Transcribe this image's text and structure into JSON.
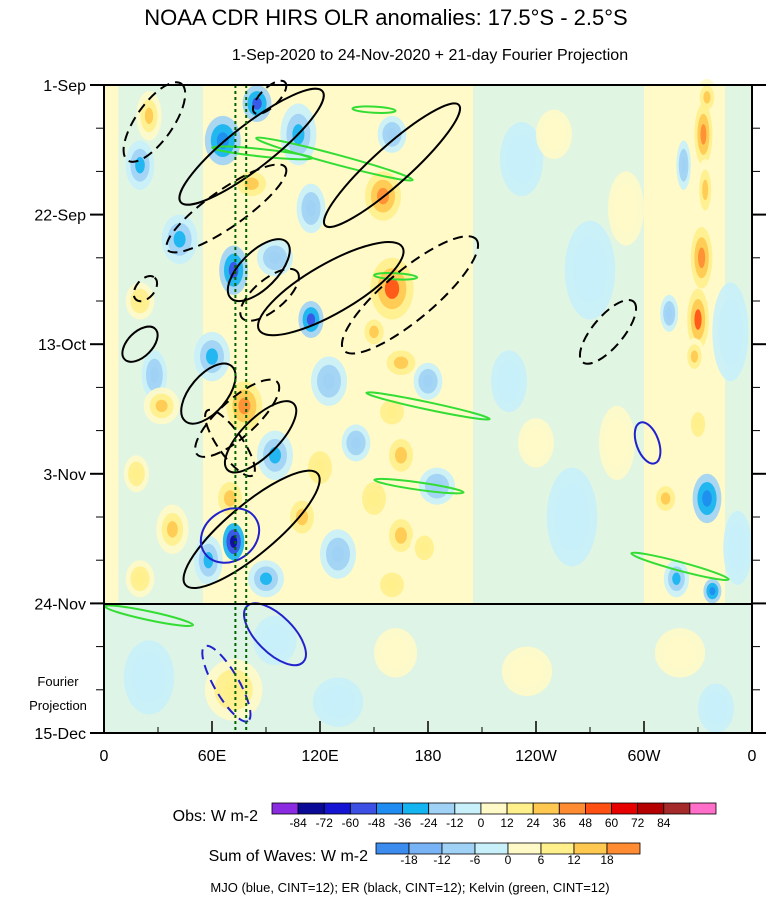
{
  "chart_data": {
    "type": "heatmap",
    "title": "NOAA CDR HIRS OLR anomalies: 17.5°S - 2.5°S",
    "subtitle": "1-Sep-2020 to 24-Nov-2020 + 21-day Fourier Projection",
    "x_range_deg": [
      0,
      360
    ],
    "x_ticks": [
      {
        "deg": 0,
        "label": "0"
      },
      {
        "deg": 60,
        "label": "60E"
      },
      {
        "deg": 120,
        "label": "120E"
      },
      {
        "deg": 180,
        "label": "180"
      },
      {
        "deg": 240,
        "label": "120W"
      },
      {
        "deg": 300,
        "label": "60W"
      },
      {
        "deg": 360,
        "label": "0"
      }
    ],
    "y_range_days": [
      0,
      105
    ],
    "y_ticks": [
      {
        "day": 0,
        "label": "1-Sep"
      },
      {
        "day": 21,
        "label": "22-Sep"
      },
      {
        "day": 42,
        "label": "13-Oct"
      },
      {
        "day": 63,
        "label": "3-Nov"
      },
      {
        "day": 84,
        "label": "24-Nov"
      },
      {
        "day": 105,
        "label": "15-Dec"
      }
    ],
    "projection_start_day": 84,
    "projection_label_line1": "Fourier",
    "projection_label_line2": "Projection",
    "reference_longitudes_deg": [
      73,
      79
    ],
    "obs_legend": {
      "label": "Obs: W m-2",
      "levels": [
        "-84",
        "-72",
        "-60",
        "-48",
        "-36",
        "-24",
        "-12",
        "0",
        "12",
        "24",
        "36",
        "48",
        "60",
        "72",
        "84"
      ],
      "colors": [
        "#8a2be2",
        "#0a0a96",
        "#1414d2",
        "#3c50e6",
        "#1e8cf0",
        "#14b4f0",
        "#a0d2f5",
        "#c8f0fa",
        "#fffac8",
        "#fff08c",
        "#ffc850",
        "#ff8c32",
        "#ff5014",
        "#e60000",
        "#b40000",
        "#a52a2a",
        "#ff6ec8"
      ]
    },
    "waves_legend": {
      "label": "Sum of Waves: W m-2",
      "levels": [
        "-18",
        "-12",
        "-6",
        "0",
        "6",
        "12",
        "18"
      ],
      "colors": [
        "#3c8cf0",
        "#78b4f5",
        "#a0d2f5",
        "#c8f0fa",
        "#fffac8",
        "#fff08c",
        "#ffc850",
        "#ff8c32"
      ]
    },
    "footnote": "MJO (blue, CINT=12); ER (black, CINT=12); Kelvin (green, CINT=12)",
    "blobs": [
      {
        "lon": 335,
        "day": 2,
        "rl": 6,
        "rd": 3,
        "v": 36
      },
      {
        "lon": 333,
        "day": 8,
        "rl": 5,
        "rd": 5,
        "v": 48
      },
      {
        "lon": 334,
        "day": 17,
        "rl": 5,
        "rd": 5,
        "v": 36
      },
      {
        "lon": 332,
        "day": 28,
        "rl": 6,
        "rd": 5,
        "v": 48
      },
      {
        "lon": 330,
        "day": 38,
        "rl": 6,
        "rd": 5,
        "v": 60
      },
      {
        "lon": 328,
        "day": 44,
        "rl": 6,
        "rd": 3,
        "v": 36
      },
      {
        "lon": 330,
        "day": 55,
        "rl": 6,
        "rd": 3,
        "v": 24
      },
      {
        "lon": 335,
        "day": 67,
        "rl": 8,
        "rd": 4,
        "v": -48
      },
      {
        "lon": 312,
        "day": 67,
        "rl": 8,
        "rd": 3,
        "v": 36
      },
      {
        "lon": 338,
        "day": 82,
        "rl": 5,
        "rd": 2,
        "v": -48
      },
      {
        "lon": 314,
        "day": 37,
        "rl": 5,
        "rd": 3,
        "v": -24
      },
      {
        "lon": 322,
        "day": 13,
        "rl": 4,
        "rd": 4,
        "v": -24
      },
      {
        "lon": 318,
        "day": 80,
        "rl": 7,
        "rd": 3,
        "v": -36
      },
      {
        "lon": 25,
        "day": 5,
        "rl": 7,
        "rd": 4,
        "v": 36
      },
      {
        "lon": 20,
        "day": 13,
        "rl": 8,
        "rd": 4,
        "v": -36
      },
      {
        "lon": 42,
        "day": 25,
        "rl": 10,
        "rd": 4,
        "v": -36
      },
      {
        "lon": 20,
        "day": 35,
        "rl": 8,
        "rd": 3,
        "v": 24
      },
      {
        "lon": 28,
        "day": 47,
        "rl": 7,
        "rd": 4,
        "v": -24
      },
      {
        "lon": 32,
        "day": 52,
        "rl": 10,
        "rd": 3,
        "v": 36
      },
      {
        "lon": 18,
        "day": 63,
        "rl": 7,
        "rd": 3,
        "v": 24
      },
      {
        "lon": 38,
        "day": 72,
        "rl": 9,
        "rd": 4,
        "v": 36
      },
      {
        "lon": 58,
        "day": 77,
        "rl": 8,
        "rd": 4,
        "v": -36
      },
      {
        "lon": 20,
        "day": 80,
        "rl": 8,
        "rd": 3,
        "v": 24
      },
      {
        "lon": 85,
        "day": 3,
        "rl": 8,
        "rd": 3,
        "v": -60
      },
      {
        "lon": 66,
        "day": 9,
        "rl": 10,
        "rd": 4,
        "v": -48
      },
      {
        "lon": 82,
        "day": 16,
        "rl": 12,
        "rd": 3,
        "v": 36
      },
      {
        "lon": 72,
        "day": 30,
        "rl": 8,
        "rd": 4,
        "v": -60
      },
      {
        "lon": 95,
        "day": 28,
        "rl": 10,
        "rd": 3,
        "v": -24
      },
      {
        "lon": 60,
        "day": 44,
        "rl": 10,
        "rd": 4,
        "v": -36
      },
      {
        "lon": 78,
        "day": 52,
        "rl": 10,
        "rd": 4,
        "v": 48
      },
      {
        "lon": 95,
        "day": 60,
        "rl": 10,
        "rd": 4,
        "v": -36
      },
      {
        "lon": 70,
        "day": 67,
        "rl": 10,
        "rd": 4,
        "v": 36
      },
      {
        "lon": 72,
        "day": 74,
        "rl": 6,
        "rd": 3,
        "v": -84
      },
      {
        "lon": 90,
        "day": 80,
        "rl": 10,
        "rd": 3,
        "v": -36
      },
      {
        "lon": 108,
        "day": 8,
        "rl": 10,
        "rd": 5,
        "v": -36
      },
      {
        "lon": 115,
        "day": 20,
        "rl": 8,
        "rd": 4,
        "v": -24
      },
      {
        "lon": 115,
        "day": 38,
        "rl": 7,
        "rd": 3,
        "v": -60
      },
      {
        "lon": 125,
        "day": 48,
        "rl": 10,
        "rd": 4,
        "v": -24
      },
      {
        "lon": 120,
        "day": 62,
        "rl": 10,
        "rd": 4,
        "v": 24
      },
      {
        "lon": 110,
        "day": 70,
        "rl": 10,
        "rd": 4,
        "v": 36
      },
      {
        "lon": 130,
        "day": 76,
        "rl": 10,
        "rd": 4,
        "v": -24
      },
      {
        "lon": 155,
        "day": 18,
        "rl": 10,
        "rd": 4,
        "v": 48
      },
      {
        "lon": 160,
        "day": 8,
        "rl": 8,
        "rd": 3,
        "v": -24
      },
      {
        "lon": 160,
        "day": 33,
        "rl": 12,
        "rd": 5,
        "v": 60
      },
      {
        "lon": 150,
        "day": 40,
        "rl": 8,
        "rd": 3,
        "v": 36
      },
      {
        "lon": 165,
        "day": 45,
        "rl": 12,
        "rd": 3,
        "v": 36
      },
      {
        "lon": 160,
        "day": 53,
        "rl": 10,
        "rd": 3,
        "v": 24
      },
      {
        "lon": 165,
        "day": 60,
        "rl": 10,
        "rd": 4,
        "v": 36
      },
      {
        "lon": 150,
        "day": 67,
        "rl": 10,
        "rd": 4,
        "v": 24
      },
      {
        "lon": 165,
        "day": 73,
        "rl": 10,
        "rd": 4,
        "v": 36
      },
      {
        "lon": 160,
        "day": 81,
        "rl": 10,
        "rd": 3,
        "v": 24
      },
      {
        "lon": 140,
        "day": 58,
        "rl": 8,
        "rd": 3,
        "v": -24
      },
      {
        "lon": 180,
        "day": 48,
        "rl": 8,
        "rd": 3,
        "v": -24
      },
      {
        "lon": 185,
        "day": 65,
        "rl": 10,
        "rd": 3,
        "v": -24
      },
      {
        "lon": 178,
        "day": 75,
        "rl": 8,
        "rd": 3,
        "v": 24
      },
      {
        "lon": 232,
        "day": 12,
        "rl": 12,
        "rd": 6,
        "v": -12
      },
      {
        "lon": 225,
        "day": 48,
        "rl": 10,
        "rd": 5,
        "v": -12
      },
      {
        "lon": 270,
        "day": 30,
        "rl": 14,
        "rd": 8,
        "v": -12
      },
      {
        "lon": 260,
        "day": 70,
        "rl": 14,
        "rd": 8,
        "v": -12
      },
      {
        "lon": 348,
        "day": 40,
        "rl": 10,
        "rd": 8,
        "v": -12
      },
      {
        "lon": 352,
        "day": 75,
        "rl": 8,
        "rd": 6,
        "v": -12
      },
      {
        "lon": 250,
        "day": 8,
        "rl": 10,
        "rd": 4,
        "v": 12
      },
      {
        "lon": 240,
        "day": 58,
        "rl": 10,
        "rd": 4,
        "v": 12
      },
      {
        "lon": 290,
        "day": 20,
        "rl": 10,
        "rd": 6,
        "v": 12
      },
      {
        "lon": 285,
        "day": 58,
        "rl": 10,
        "rd": 6,
        "v": 12
      }
    ],
    "proj_blobs": [
      {
        "lon": 72,
        "day": 98,
        "rl": 16,
        "rd": 5,
        "v": 12
      },
      {
        "lon": 95,
        "day": 90,
        "rl": 12,
        "rd": 4,
        "v": -6
      },
      {
        "lon": 25,
        "day": 96,
        "rl": 14,
        "rd": 6,
        "v": -6
      },
      {
        "lon": 162,
        "day": 92,
        "rl": 12,
        "rd": 4,
        "v": 6
      },
      {
        "lon": 320,
        "day": 92,
        "rl": 14,
        "rd": 4,
        "v": 6
      },
      {
        "lon": 130,
        "day": 100,
        "rl": 14,
        "rd": 4,
        "v": -6
      },
      {
        "lon": 340,
        "day": 101,
        "rl": 10,
        "rd": 4,
        "v": -6
      },
      {
        "lon": 235,
        "day": 95,
        "rl": 14,
        "rd": 4,
        "v": 6
      }
    ],
    "er_contours": [
      {
        "lon": 28,
        "day": 6,
        "rl": 26,
        "rd": 3,
        "angle": -55,
        "dashed": true
      },
      {
        "lon": 82,
        "day": 10,
        "rl": 50,
        "rd": 3.5,
        "angle": -38,
        "dashed": false
      },
      {
        "lon": 92,
        "day": 2,
        "rl": 12,
        "rd": 1.5,
        "angle": -45,
        "dashed": true
      },
      {
        "lon": 160,
        "day": 13,
        "rl": 50,
        "rd": 3,
        "angle": -42,
        "dashed": false
      },
      {
        "lon": 68,
        "day": 20,
        "rl": 40,
        "rd": 3,
        "angle": -35,
        "dashed": true
      },
      {
        "lon": 126,
        "day": 33,
        "rl": 46,
        "rd": 4,
        "angle": -30,
        "dashed": false
      },
      {
        "lon": 170,
        "day": 34,
        "rl": 48,
        "rd": 4,
        "angle": -40,
        "dashed": true
      },
      {
        "lon": 86,
        "day": 30,
        "rl": 22,
        "rd": 3,
        "angle": -45,
        "dashed": false
      },
      {
        "lon": 92,
        "day": 34,
        "rl": 20,
        "rd": 2.5,
        "angle": -40,
        "dashed": true
      },
      {
        "lon": 20,
        "day": 42,
        "rl": 12,
        "rd": 2,
        "angle": -45,
        "dashed": false
      },
      {
        "lon": 23,
        "day": 33,
        "rl": 8,
        "rd": 1.5,
        "angle": -50,
        "dashed": true
      },
      {
        "lon": 58,
        "day": 50,
        "rl": 20,
        "rd": 3,
        "angle": -50,
        "dashed": false
      },
      {
        "lon": 74,
        "day": 54,
        "rl": 30,
        "rd": 3,
        "angle": -42,
        "dashed": true
      },
      {
        "lon": 87,
        "day": 57,
        "rl": 26,
        "rd": 3,
        "angle": -45,
        "dashed": false
      },
      {
        "lon": 82,
        "day": 72,
        "rl": 48,
        "rd": 4,
        "angle": -40,
        "dashed": false
      },
      {
        "lon": 280,
        "day": 40,
        "rl": 22,
        "rd": 2.5,
        "angle": -50,
        "dashed": true
      },
      {
        "lon": 70,
        "day": 58,
        "rl": 22,
        "rd": 2,
        "angle": 55,
        "dashed": true
      }
    ],
    "mjo_contours": [
      {
        "lon": 70,
        "day": 73,
        "rl": 14,
        "rd": 5,
        "angle": 55,
        "dashed": false
      },
      {
        "lon": 302,
        "day": 58,
        "rl": 12,
        "rd": 1.8,
        "angle": 70,
        "dashed": false
      },
      {
        "lon": 95,
        "day": 89,
        "rl": 22,
        "rd": 3,
        "angle": 45,
        "dashed": false
      },
      {
        "lon": 68,
        "day": 97,
        "rl": 24,
        "rd": 2,
        "angle": 60,
        "dashed": true
      }
    ],
    "kelvin_contours": [
      {
        "lon": 128,
        "day": 12,
        "rl": 45,
        "rd": 0.8,
        "angle": 15,
        "dashed": false
      },
      {
        "lon": 88,
        "day": 11,
        "rl": 28,
        "rd": 0.6,
        "angle": 6,
        "dashed": false
      },
      {
        "lon": 180,
        "day": 52,
        "rl": 35,
        "rd": 0.6,
        "angle": 12,
        "dashed": false
      },
      {
        "lon": 175,
        "day": 65,
        "rl": 25,
        "rd": 0.6,
        "angle": 8,
        "dashed": false
      },
      {
        "lon": 320,
        "day": 78,
        "rl": 28,
        "rd": 0.7,
        "angle": 15,
        "dashed": false
      },
      {
        "lon": 25,
        "day": 86,
        "rl": 25,
        "rd": 0.7,
        "angle": 12,
        "dashed": false
      },
      {
        "lon": 162,
        "day": 31,
        "rl": 12,
        "rd": 0.5,
        "angle": 3,
        "dashed": false
      },
      {
        "lon": 150,
        "day": 4,
        "rl": 12,
        "rd": 0.5,
        "angle": 3,
        "dashed": false
      }
    ]
  }
}
